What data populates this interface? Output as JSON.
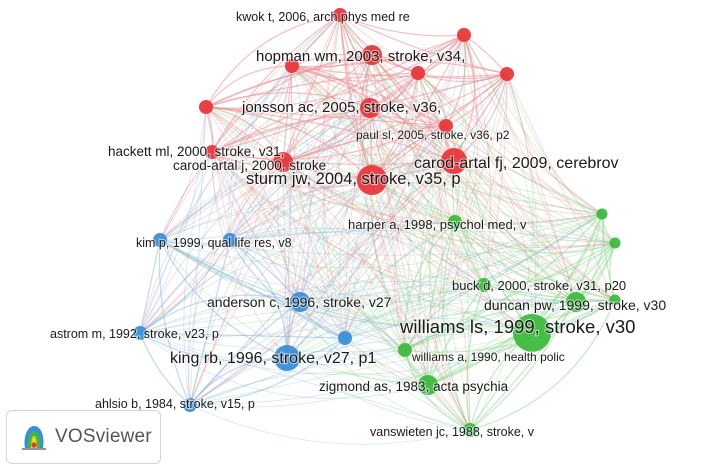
{
  "app": {
    "name": "VOSviewer"
  },
  "colors": {
    "cluster_red": "#e8373c",
    "cluster_green": "#3dbb3d",
    "cluster_blue": "#3b8fd9",
    "link_red": "#ef8c8f",
    "link_green": "#8fd88f",
    "link_blue": "#8ab9e6",
    "label": "#1a1a1a"
  },
  "nodes": [
    {
      "id": "kwok",
      "label": "kwok t, 2006, arch phys med re",
      "cluster": "red",
      "weight": 2
    },
    {
      "id": "hopman",
      "label": "hopman wm, 2003, stroke, v34,",
      "cluster": "red",
      "weight": 3
    },
    {
      "id": "jonsson",
      "label": "jonsson ac, 2005, stroke, v36,",
      "cluster": "red",
      "weight": 3
    },
    {
      "id": "paul",
      "label": "paul sl, 2005, stroke, v36, p2",
      "cluster": "red",
      "weight": 2
    },
    {
      "id": "hackett",
      "label": "hackett ml, 2000, stroke, v31,",
      "cluster": "red",
      "weight": 2
    },
    {
      "id": "carodj",
      "label": "carod-artal j, 2000, stroke",
      "cluster": "red",
      "weight": 3
    },
    {
      "id": "carodfj",
      "label": "carod-artal fj, 2009, cerebrov",
      "cluster": "red",
      "weight": 4
    },
    {
      "id": "sturm",
      "label": "sturm jw, 2004, stroke, v35, p",
      "cluster": "red",
      "weight": 5
    },
    {
      "id": "harper",
      "label": "harper a, 1998, psychol med, v",
      "cluster": "green",
      "weight": 2
    },
    {
      "id": "kim",
      "label": "kim p, 1999, qual life res, v8",
      "cluster": "blue",
      "weight": 2
    },
    {
      "id": "buck",
      "label": "buck d, 2000, stroke, v31, p20",
      "cluster": "green",
      "weight": 2
    },
    {
      "id": "anderson",
      "label": "anderson c, 1996, stroke, v27",
      "cluster": "blue",
      "weight": 3
    },
    {
      "id": "duncan",
      "label": "duncan pw, 1999, stroke, v30",
      "cluster": "green",
      "weight": 3
    },
    {
      "id": "williamsls",
      "label": "williams ls, 1999, stroke, v30",
      "cluster": "green",
      "weight": 6
    },
    {
      "id": "astrom",
      "label": "astrom m, 1992, stroke, v23, p",
      "cluster": "blue",
      "weight": 2
    },
    {
      "id": "king",
      "label": "king rb, 1996, stroke, v27, p1",
      "cluster": "blue",
      "weight": 4
    },
    {
      "id": "williamsa",
      "label": "williams a, 1990, health polic",
      "cluster": "green",
      "weight": 2
    },
    {
      "id": "zigmond",
      "label": "zigmond as, 1983, acta psychia",
      "cluster": "green",
      "weight": 3
    },
    {
      "id": "ahlsio",
      "label": "ahlsio b, 1984, stroke, v15, p",
      "cluster": "blue",
      "weight": 2
    },
    {
      "id": "vanswieten",
      "label": "vanswieten jc, 1988, stroke, v",
      "cluster": "green",
      "weight": 2
    },
    {
      "id": "r_a",
      "label": "",
      "cluster": "red",
      "weight": 2
    },
    {
      "id": "r_b",
      "label": "",
      "cluster": "red",
      "weight": 2
    },
    {
      "id": "r_c",
      "label": "",
      "cluster": "red",
      "weight": 2
    },
    {
      "id": "r_d",
      "label": "",
      "cluster": "red",
      "weight": 2
    },
    {
      "id": "r_e",
      "label": "",
      "cluster": "red",
      "weight": 2
    },
    {
      "id": "g_a",
      "label": "",
      "cluster": "green",
      "weight": 1
    },
    {
      "id": "g_b",
      "label": "",
      "cluster": "green",
      "weight": 1
    },
    {
      "id": "g_c",
      "label": "",
      "cluster": "green",
      "weight": 1
    },
    {
      "id": "b_a",
      "label": "",
      "cluster": "blue",
      "weight": 2
    },
    {
      "id": "b_b",
      "label": "",
      "cluster": "blue",
      "weight": 2
    }
  ]
}
